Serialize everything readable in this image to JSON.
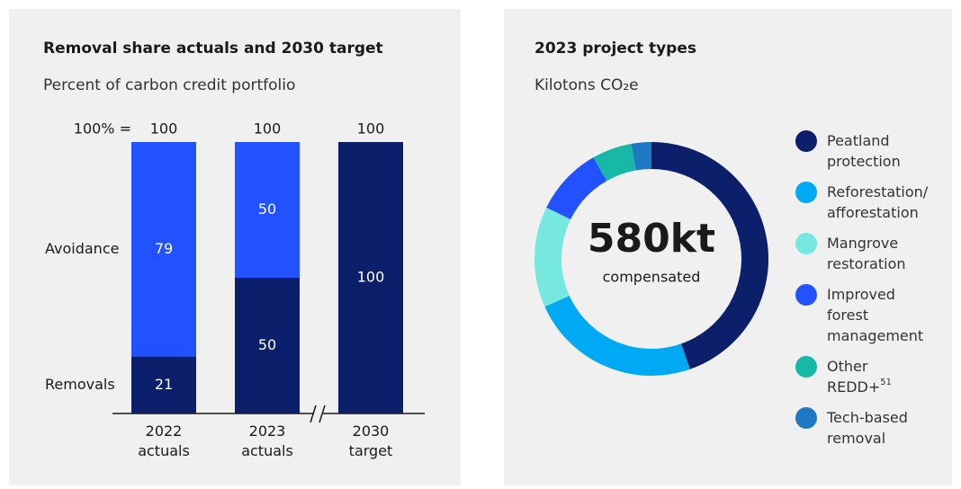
{
  "chart_data": [
    {
      "type": "stacked_bar",
      "title": "Removal share actuals and 2030 target",
      "subtitle": "Percent of carbon credit portfolio",
      "categories": [
        [
          "2022",
          "actuals"
        ],
        [
          "2023",
          "actuals"
        ],
        [
          "2030",
          "target"
        ]
      ],
      "series": [
        {
          "name": "Removals",
          "color": "#0b1f6b",
          "values": [
            21,
            50,
            100
          ]
        },
        {
          "name": "Avoidance",
          "color": "#2251ff",
          "values": [
            79,
            50,
            null
          ]
        }
      ],
      "totals_label": "100% =",
      "totals": [
        100,
        100,
        100
      ],
      "ylim": [
        0,
        100
      ],
      "axis_break": true
    },
    {
      "type": "donut",
      "title": "2023 project types",
      "subtitle": "Kilotons CO₂e",
      "center_label": "580kt",
      "center_sublabel": "compensated",
      "categories": [
        [
          "Peatland",
          "protection"
        ],
        [
          "Reforestation/",
          "afforestation"
        ],
        [
          "Mangrove",
          "restoration"
        ],
        [
          "Improved",
          "forest",
          "management"
        ],
        [
          "Other",
          "REDD+"
        ],
        [
          "Tech-based",
          "removal"
        ]
      ],
      "footnotes": [
        null,
        null,
        null,
        null,
        "51",
        null
      ],
      "values": [
        259,
        137,
        81,
        55,
        32,
        16
      ],
      "colors": [
        "#0b1f6b",
        "#00a9f4",
        "#76e8df",
        "#2251ff",
        "#17b8a6",
        "#1f78c4"
      ]
    }
  ]
}
